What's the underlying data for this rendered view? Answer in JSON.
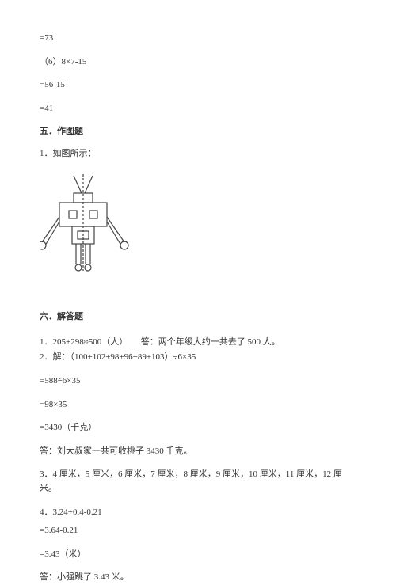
{
  "lines": {
    "l1": "=73",
    "l2": "（6）8×7-15",
    "l3": "=56-15",
    "l4": "=41"
  },
  "section5": {
    "title": "五．作图题",
    "q1": "1．如图所示："
  },
  "section6": {
    "title": "六．解答题",
    "q1": "1．205+298≈500（人）　　答：两个年级大约一共去了 500 人。",
    "q2": "2．解：（100+102+98+96+89+103）÷6×35",
    "s1": "=588÷6×35",
    "s2": "=98×35",
    "s3": "=3430（千克）",
    "a2": "答：刘大叔家一共可收桃子 3430 千克。",
    "q3": "3．4 厘米，5 厘米，6 厘米，7 厘米，8 厘米，9 厘米，10 厘米，11 厘米，12 厘米。",
    "q4": "4．3.24+0.4-0.21",
    "s4": "=3.64-0.21",
    "s5": "=3.43（米）",
    "a4": "答：小强跳了 3.43 米。"
  },
  "robot": {
    "stroke": "#444444",
    "strokeWidth": 1.2,
    "dash": "3,2"
  }
}
